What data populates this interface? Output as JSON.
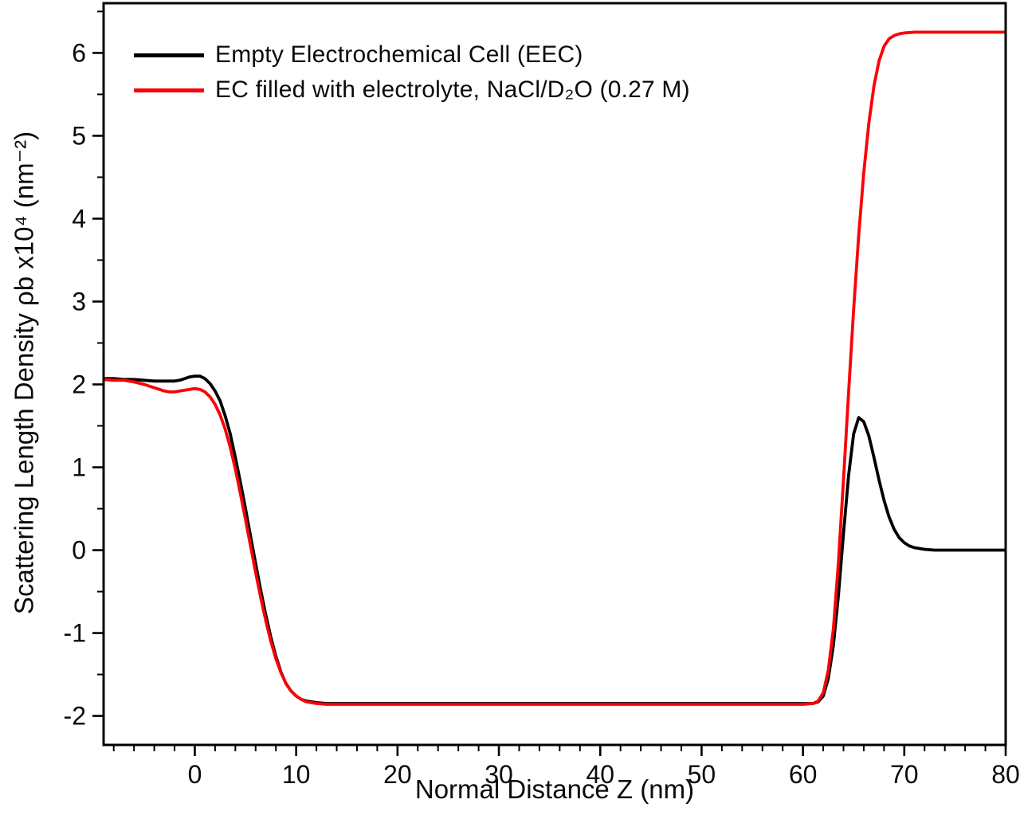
{
  "chart_data": {
    "type": "line",
    "title": "",
    "xlabel": "Normal Distance Z (nm)",
    "ylabel": "Scattering Length Density ρb x10⁴ (nm⁻²)",
    "xlim": [
      -9,
      80
    ],
    "ylim": [
      -2.35,
      6.6
    ],
    "x_major_ticks": [
      0,
      10,
      20,
      30,
      40,
      50,
      60,
      70,
      80
    ],
    "x_minor_step": 2,
    "y_major_ticks": [
      -2,
      -1,
      0,
      1,
      2,
      3,
      4,
      5,
      6
    ],
    "y_minor_step": 0.5,
    "grid": false,
    "legend_position": "top-left",
    "background_color": "#ffffff",
    "axis_color": "#000000",
    "series": [
      {
        "name": "Empty Electrochemical Cell (EEC)",
        "color": "#000000",
        "points": [
          [
            -9,
            2.07
          ],
          [
            -8,
            2.07
          ],
          [
            -7,
            2.06
          ],
          [
            -6,
            2.06
          ],
          [
            -5,
            2.05
          ],
          [
            -4,
            2.04
          ],
          [
            -3,
            2.04
          ],
          [
            -2,
            2.04
          ],
          [
            -1.5,
            2.05
          ],
          [
            -1,
            2.07
          ],
          [
            -0.5,
            2.09
          ],
          [
            0,
            2.1
          ],
          [
            0.5,
            2.1
          ],
          [
            1,
            2.07
          ],
          [
            1.5,
            2.01
          ],
          [
            2,
            1.92
          ],
          [
            2.5,
            1.8
          ],
          [
            3,
            1.62
          ],
          [
            3.5,
            1.4
          ],
          [
            4,
            1.12
          ],
          [
            4.5,
            0.82
          ],
          [
            5,
            0.5
          ],
          [
            5.5,
            0.17
          ],
          [
            6,
            -0.16
          ],
          [
            6.5,
            -0.48
          ],
          [
            7,
            -0.78
          ],
          [
            7.5,
            -1.05
          ],
          [
            8,
            -1.28
          ],
          [
            8.5,
            -1.47
          ],
          [
            9,
            -1.61
          ],
          [
            9.5,
            -1.7
          ],
          [
            10,
            -1.76
          ],
          [
            10.5,
            -1.8
          ],
          [
            11,
            -1.82
          ],
          [
            12,
            -1.84
          ],
          [
            13,
            -1.85
          ],
          [
            15,
            -1.85
          ],
          [
            20,
            -1.85
          ],
          [
            30,
            -1.85
          ],
          [
            40,
            -1.85
          ],
          [
            50,
            -1.85
          ],
          [
            58,
            -1.85
          ],
          [
            60,
            -1.85
          ],
          [
            61,
            -1.85
          ],
          [
            61.5,
            -1.83
          ],
          [
            62,
            -1.76
          ],
          [
            62.5,
            -1.55
          ],
          [
            63,
            -1.15
          ],
          [
            63.5,
            -0.55
          ],
          [
            64,
            0.2
          ],
          [
            64.5,
            0.9
          ],
          [
            65,
            1.4
          ],
          [
            65.5,
            1.6
          ],
          [
            66,
            1.55
          ],
          [
            66.5,
            1.38
          ],
          [
            67,
            1.12
          ],
          [
            67.5,
            0.85
          ],
          [
            68,
            0.6
          ],
          [
            68.5,
            0.4
          ],
          [
            69,
            0.25
          ],
          [
            69.5,
            0.15
          ],
          [
            70,
            0.09
          ],
          [
            70.5,
            0.05
          ],
          [
            71,
            0.03
          ],
          [
            72,
            0.01
          ],
          [
            73,
            0.0
          ],
          [
            75,
            0.0
          ],
          [
            80,
            0.0
          ]
        ]
      },
      {
        "name": "EC filled with electrolyte, NaCl/D₂O (0.27 M)",
        "color": "#fb0207",
        "points": [
          [
            -9,
            2.06
          ],
          [
            -8,
            2.05
          ],
          [
            -7,
            2.05
          ],
          [
            -6,
            2.03
          ],
          [
            -5,
            2.0
          ],
          [
            -4,
            1.96
          ],
          [
            -3.5,
            1.94
          ],
          [
            -3,
            1.92
          ],
          [
            -2.5,
            1.91
          ],
          [
            -2,
            1.91
          ],
          [
            -1.5,
            1.92
          ],
          [
            -1,
            1.93
          ],
          [
            -0.5,
            1.94
          ],
          [
            0,
            1.95
          ],
          [
            0.5,
            1.94
          ],
          [
            1,
            1.91
          ],
          [
            1.5,
            1.85
          ],
          [
            2,
            1.76
          ],
          [
            2.5,
            1.63
          ],
          [
            3,
            1.46
          ],
          [
            3.5,
            1.24
          ],
          [
            4,
            0.98
          ],
          [
            4.5,
            0.68
          ],
          [
            5,
            0.37
          ],
          [
            5.5,
            0.05
          ],
          [
            6,
            -0.27
          ],
          [
            6.5,
            -0.57
          ],
          [
            7,
            -0.85
          ],
          [
            7.5,
            -1.1
          ],
          [
            8,
            -1.31
          ],
          [
            8.5,
            -1.48
          ],
          [
            9,
            -1.61
          ],
          [
            9.5,
            -1.7
          ],
          [
            10,
            -1.76
          ],
          [
            10.5,
            -1.8
          ],
          [
            11,
            -1.83
          ],
          [
            12,
            -1.85
          ],
          [
            13,
            -1.86
          ],
          [
            15,
            -1.86
          ],
          [
            20,
            -1.86
          ],
          [
            30,
            -1.86
          ],
          [
            40,
            -1.86
          ],
          [
            50,
            -1.86
          ],
          [
            58,
            -1.86
          ],
          [
            60,
            -1.86
          ],
          [
            61,
            -1.85
          ],
          [
            61.5,
            -1.82
          ],
          [
            62,
            -1.72
          ],
          [
            62.5,
            -1.45
          ],
          [
            63,
            -0.95
          ],
          [
            63.5,
            -0.15
          ],
          [
            64,
            0.85
          ],
          [
            64.5,
            1.9
          ],
          [
            65,
            2.9
          ],
          [
            65.5,
            3.8
          ],
          [
            66,
            4.55
          ],
          [
            66.5,
            5.15
          ],
          [
            67,
            5.6
          ],
          [
            67.5,
            5.9
          ],
          [
            68,
            6.08
          ],
          [
            68.5,
            6.17
          ],
          [
            69,
            6.21
          ],
          [
            69.5,
            6.23
          ],
          [
            70,
            6.24
          ],
          [
            71,
            6.25
          ],
          [
            73,
            6.25
          ],
          [
            76,
            6.25
          ],
          [
            80,
            6.25
          ]
        ]
      }
    ]
  }
}
